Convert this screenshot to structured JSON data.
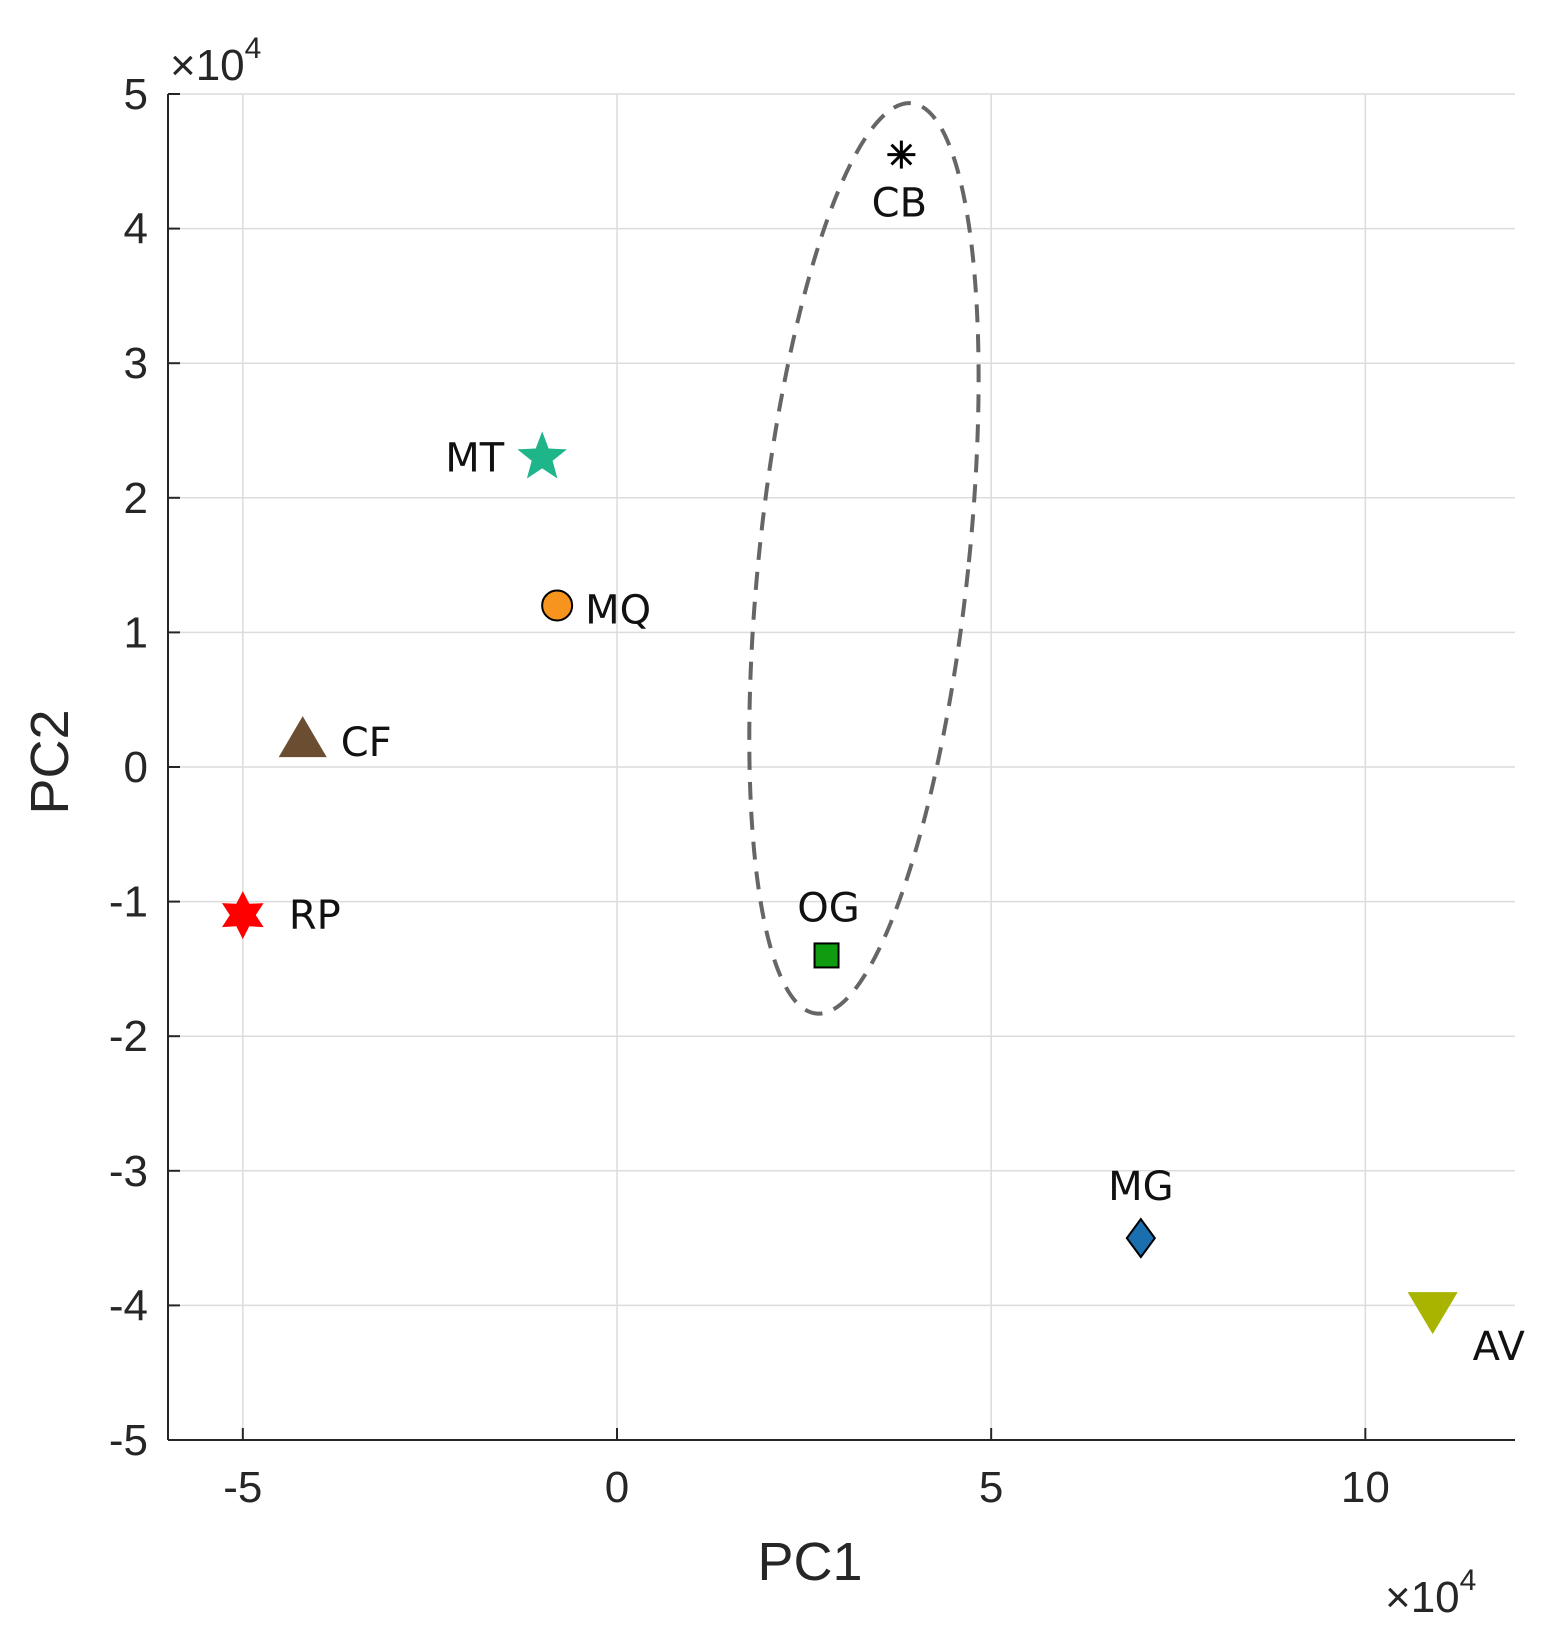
{
  "chart_data": {
    "type": "scatter",
    "xlabel": "PC1",
    "ylabel": "PC2",
    "x_multiplier": "×10",
    "x_multiplier_exp": "4",
    "y_multiplier": "×10",
    "y_multiplier_exp": "4",
    "xlim": [
      -6,
      12
    ],
    "ylim": [
      -5,
      5
    ],
    "x_ticks": [
      -5,
      0,
      5,
      10
    ],
    "y_ticks": [
      -5,
      -4,
      -3,
      -2,
      -1,
      0,
      1,
      2,
      3,
      4,
      5
    ],
    "grid": true,
    "points": [
      {
        "label": "CB",
        "x": 3.8,
        "y": 4.55,
        "marker": "asterisk",
        "color": "#000000"
      },
      {
        "label": "MT",
        "x": -1.0,
        "y": 2.3,
        "marker": "pentagram",
        "color": "#1fb58a"
      },
      {
        "label": "MQ",
        "x": -0.8,
        "y": 1.2,
        "marker": "circle",
        "color": "#f7941d"
      },
      {
        "label": "CF",
        "x": -4.2,
        "y": 0.2,
        "marker": "triangle-up",
        "color": "#6b4e31"
      },
      {
        "label": "RP",
        "x": -5.0,
        "y": -1.1,
        "marker": "hexagram",
        "color": "#ff0000"
      },
      {
        "label": "OG",
        "x": 2.8,
        "y": -1.4,
        "marker": "square",
        "color": "#109c10"
      },
      {
        "label": "MG",
        "x": 7.0,
        "y": -3.5,
        "marker": "diamond",
        "color": "#1b6fae"
      },
      {
        "label": "AV",
        "x": 10.9,
        "y": -4.05,
        "marker": "triangle-down",
        "color": "#a8b400"
      }
    ],
    "ellipse": {
      "cx": 3.3,
      "cy": 1.55,
      "rx": 1.4,
      "ry": 3.4,
      "rotation_deg": 6,
      "style": "dashed",
      "color": "#666666"
    }
  }
}
